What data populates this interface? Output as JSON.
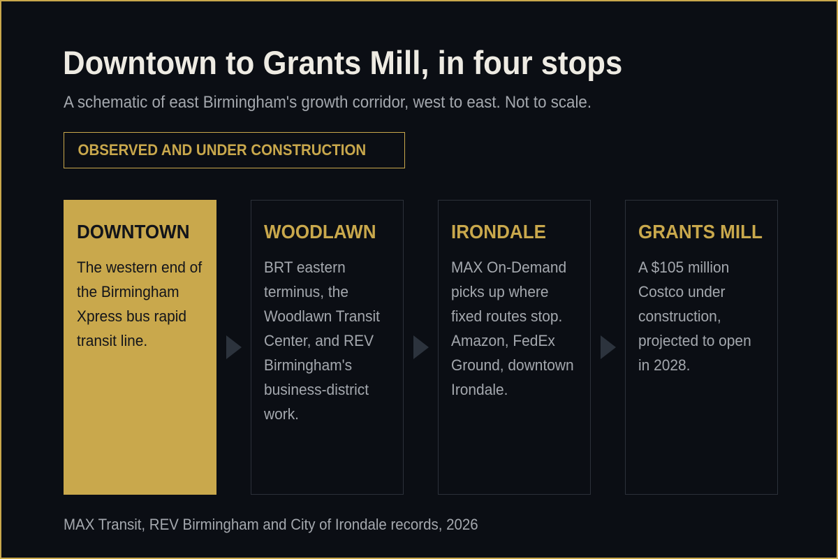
{
  "header": {
    "title": "Downtown to Grants Mill, in four stops",
    "subtitle": "A schematic of east Birmingham's growth corridor, west to east. Not to scale."
  },
  "badge": {
    "label": "OBSERVED AND UNDER CONSTRUCTION"
  },
  "stops": [
    {
      "name": "DOWNTOWN",
      "description": "The western end of the Birmingham Xpress bus rapid transit line."
    },
    {
      "name": "WOODLAWN",
      "description": "BRT eastern terminus, the Woodlawn Transit Center, and REV Birmingham's business-district work."
    },
    {
      "name": "IRONDALE",
      "description": "MAX On-Demand picks up where fixed routes stop. Amazon, FedEx Ground, downtown Irondale."
    },
    {
      "name": "GRANTS MILL",
      "description": "A $105 million Costco under construction, projected to open in 2028."
    }
  ],
  "footer": {
    "source": "MAX Transit, REV Birmingham and City of Irondale records, 2026"
  },
  "colors": {
    "background": "#0b0e14",
    "accent": "#c9a84c",
    "title_text": "#eeebe3",
    "muted_text": "#a4a8ae",
    "card_border": "#2c313a",
    "arrow": "#2c333d"
  }
}
